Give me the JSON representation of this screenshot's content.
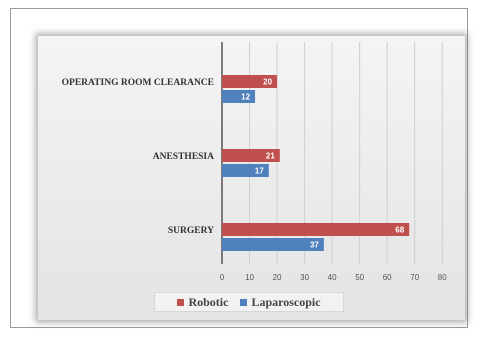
{
  "chart_data": {
    "type": "bar",
    "orientation": "horizontal",
    "categories": [
      "OPERATING ROOM CLEARANCE",
      "ANESTHESIA",
      "SURGERY"
    ],
    "series": [
      {
        "name": "Robotic",
        "color": "#c0504d",
        "values": [
          20,
          21,
          68
        ]
      },
      {
        "name": "Laparoscopic",
        "color": "#4f81bd",
        "values": [
          12,
          17,
          37
        ]
      }
    ],
    "xticks": [
      0,
      10,
      20,
      30,
      40,
      50,
      60,
      70,
      80
    ],
    "xlim": [
      0,
      85
    ],
    "grid": "vertical",
    "legend_position": "bottom"
  }
}
